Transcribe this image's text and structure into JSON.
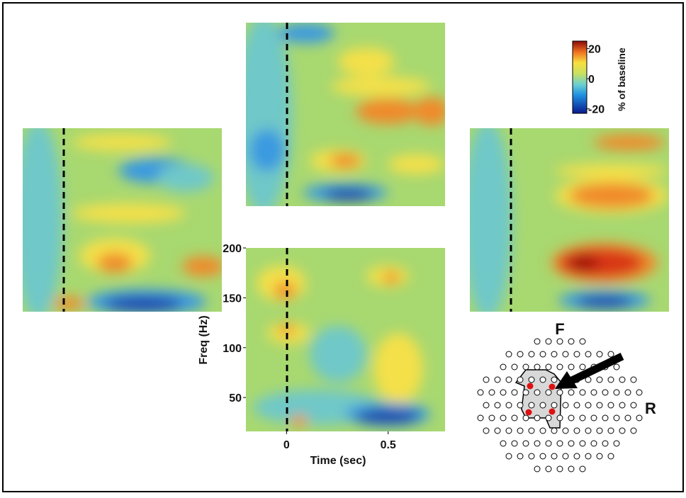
{
  "chart_data": {
    "type": "spectrogram",
    "y_label": "Freq (Hz)",
    "x_label": "Time (sec)",
    "ylim": [
      16,
      200
    ],
    "yticks": [
      50,
      100,
      150,
      200
    ],
    "xlim": [
      -0.2,
      0.78
    ],
    "xticks": [
      0,
      0.5
    ],
    "colorbar": {
      "label": "% of baseline",
      "lim": [
        -23,
        25
      ],
      "ticks": [
        20,
        0,
        -20
      ]
    },
    "head_labels": {
      "front": "F",
      "right": "R"
    }
  }
}
